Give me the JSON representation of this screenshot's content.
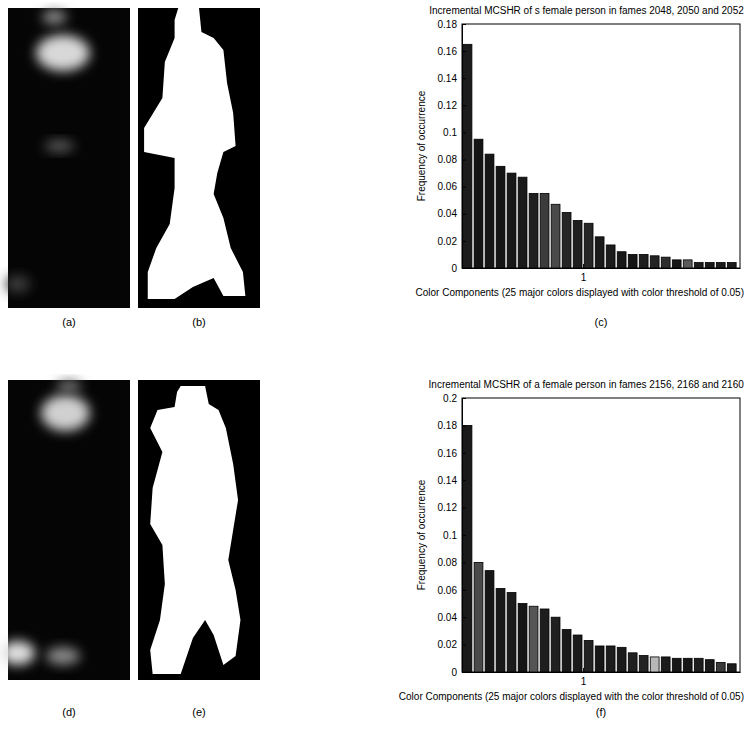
{
  "panel_labels": [
    "(a)",
    "(b)",
    "(c)",
    "(d)",
    "(e)",
    "(f)"
  ],
  "chart_data": [
    {
      "type": "bar",
      "title": "Incremental MCSHR of s female person in fames 2048, 2050 and 2052",
      "x_label": "Color Components (25 major colors displayed with color threshold of 0.05)",
      "y_label": "Frequency of occurrence",
      "x": [
        0.58,
        0.62,
        0.66,
        0.7,
        0.74,
        0.78,
        0.82,
        0.86,
        0.9,
        0.94,
        0.98,
        1.02,
        1.06,
        1.1,
        1.14,
        1.18,
        1.22,
        1.26,
        1.3,
        1.34,
        1.38,
        1.42,
        1.46,
        1.5,
        1.54
      ],
      "values": [
        0.165,
        0.095,
        0.084,
        0.075,
        0.07,
        0.067,
        0.055,
        0.055,
        0.047,
        0.041,
        0.035,
        0.033,
        0.023,
        0.017,
        0.012,
        0.01,
        0.01,
        0.009,
        0.008,
        0.006,
        0.006,
        0.004,
        0.004,
        0.004,
        0.004
      ],
      "colors": [
        "#1c1c1c",
        "#141414",
        "#161616",
        "#151515",
        "#181818",
        "#1a1a1a",
        "#202020",
        "#3c3c3c",
        "#4a4a4a",
        "#262626",
        "#1e1e1e",
        "#262626",
        "#1a1a1a",
        "#1c1c1c",
        "#181818",
        "#141414",
        "#1e1e1e",
        "#242424",
        "#2e2e2e",
        "#161616",
        "#5a5a5a",
        "#1c1c1c",
        "#181818",
        "#1a1a1a",
        "#1a1a1a"
      ],
      "xlim": [
        0.56,
        1.57
      ],
      "xticks": [
        1
      ],
      "ylim": [
        0,
        0.18
      ],
      "yticks": [
        0,
        0.02,
        0.04,
        0.06,
        0.08,
        0.1,
        0.12,
        0.14,
        0.16,
        0.18
      ],
      "grid": false
    },
    {
      "type": "bar",
      "title": "Incremental MCSHR of a female person in fames 2156, 2168 and 2160",
      "x_label": "Color Components (25 major colors displayed with the color threshold of 0.05)",
      "y_label": "Frequency of occurrence",
      "x": [
        0.58,
        0.62,
        0.66,
        0.7,
        0.74,
        0.78,
        0.82,
        0.86,
        0.9,
        0.94,
        0.98,
        1.02,
        1.06,
        1.1,
        1.14,
        1.18,
        1.22,
        1.26,
        1.3,
        1.34,
        1.38,
        1.42,
        1.46,
        1.5,
        1.54
      ],
      "values": [
        0.18,
        0.08,
        0.074,
        0.061,
        0.058,
        0.05,
        0.048,
        0.046,
        0.04,
        0.031,
        0.027,
        0.023,
        0.019,
        0.019,
        0.018,
        0.014,
        0.012,
        0.011,
        0.011,
        0.01,
        0.01,
        0.01,
        0.009,
        0.007,
        0.006
      ],
      "colors": [
        "#1a1a1a",
        "#4a4a4a",
        "#161616",
        "#181818",
        "#1c1c1c",
        "#141414",
        "#555555",
        "#1e1e1e",
        "#202020",
        "#181818",
        "#1a1a1a",
        "#222222",
        "#161616",
        "#1c1c1c",
        "#1a1a1a",
        "#202020",
        "#242424",
        "#b8b8b8",
        "#1c1c1c",
        "#181818",
        "#161616",
        "#1e1e1e",
        "#1a1a1a",
        "#3a3a3a",
        "#1c1c1c"
      ],
      "xlim": [
        0.56,
        1.57
      ],
      "xticks": [
        1
      ],
      "ylim": [
        0,
        0.2
      ],
      "yticks": [
        0,
        0.02,
        0.04,
        0.06,
        0.08,
        0.1,
        0.12,
        0.14,
        0.16,
        0.18,
        0.2
      ],
      "grid": false
    }
  ]
}
